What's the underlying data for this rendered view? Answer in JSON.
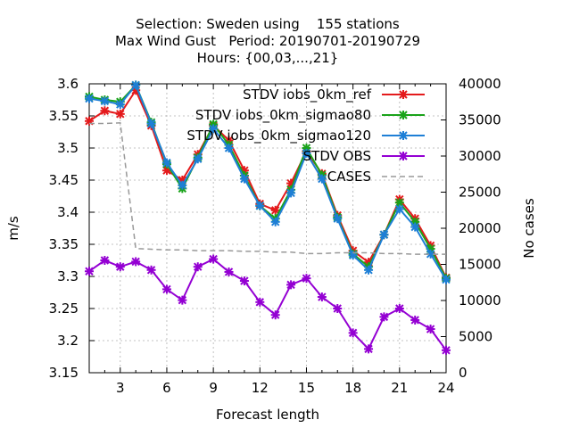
{
  "chart_data": {
    "type": "line",
    "title_lines": [
      "Selection: Sweden using    155 stations",
      "Max Wind Gust   Period: 20190701-20190729",
      "Hours: {00,03,...,21}"
    ],
    "xlabel": "Forecast length",
    "ylabel": "m/s",
    "y2label": "No cases",
    "xlim": [
      1,
      24
    ],
    "ylim": [
      3.15,
      3.6
    ],
    "y2lim": [
      0,
      40000
    ],
    "xticks": [
      3,
      6,
      9,
      12,
      15,
      18,
      21,
      24
    ],
    "yticks": [
      3.15,
      3.2,
      3.25,
      3.3,
      3.35,
      3.4,
      3.45,
      3.5,
      3.55,
      3.6
    ],
    "y2ticks": [
      0,
      5000,
      10000,
      15000,
      20000,
      25000,
      30000,
      35000,
      40000
    ],
    "grid": true,
    "legend_position": "top-right",
    "x": [
      1,
      2,
      3,
      4,
      5,
      6,
      7,
      8,
      9,
      10,
      11,
      12,
      13,
      14,
      15,
      16,
      17,
      18,
      19,
      20,
      21,
      22,
      23,
      24
    ],
    "series": [
      {
        "name": "STDV iobs_0km_ref",
        "color": "#e41a1c",
        "marker": "x",
        "axis": "y",
        "values": [
          3.542,
          3.558,
          3.553,
          3.59,
          3.535,
          3.465,
          3.45,
          3.49,
          3.535,
          3.512,
          3.465,
          3.413,
          3.403,
          3.445,
          3.495,
          3.46,
          3.395,
          3.34,
          3.322,
          3.365,
          3.42,
          3.39,
          3.348,
          3.298
        ]
      },
      {
        "name": "STDV iobs_0km_sigmao80",
        "color": "#1aa31a",
        "marker": "x",
        "axis": "y",
        "values": [
          3.58,
          3.575,
          3.572,
          3.598,
          3.54,
          3.475,
          3.437,
          3.485,
          3.537,
          3.505,
          3.457,
          3.41,
          3.39,
          3.435,
          3.5,
          3.458,
          3.392,
          3.335,
          3.315,
          3.365,
          3.415,
          3.385,
          3.343,
          3.297
        ]
      },
      {
        "name": "STDV iobs_0km_sigmao120",
        "color": "#1e7fd6",
        "marker": "x",
        "axis": "y",
        "values": [
          3.577,
          3.573,
          3.568,
          3.598,
          3.538,
          3.477,
          3.442,
          3.483,
          3.53,
          3.5,
          3.452,
          3.41,
          3.385,
          3.43,
          3.492,
          3.452,
          3.39,
          3.333,
          3.31,
          3.365,
          3.405,
          3.377,
          3.335,
          3.295
        ]
      },
      {
        "name": "STDV OBS",
        "color": "#9400d3",
        "marker": "x",
        "axis": "y",
        "values": [
          3.308,
          3.325,
          3.315,
          3.323,
          3.31,
          3.28,
          3.263,
          3.315,
          3.327,
          3.307,
          3.293,
          3.26,
          3.24,
          3.287,
          3.297,
          3.268,
          3.25,
          3.212,
          3.187,
          3.237,
          3.25,
          3.232,
          3.218,
          3.185
        ]
      },
      {
        "name": "CASES",
        "color": "#999999",
        "marker": "none",
        "dash": true,
        "axis": "y2",
        "values": [
          34500,
          34500,
          34600,
          17200,
          17100,
          17000,
          17000,
          16900,
          16900,
          16900,
          16800,
          16800,
          16700,
          16700,
          16500,
          16500,
          16600,
          16600,
          16600,
          16500,
          16500,
          16400,
          16400,
          16400
        ]
      }
    ]
  }
}
